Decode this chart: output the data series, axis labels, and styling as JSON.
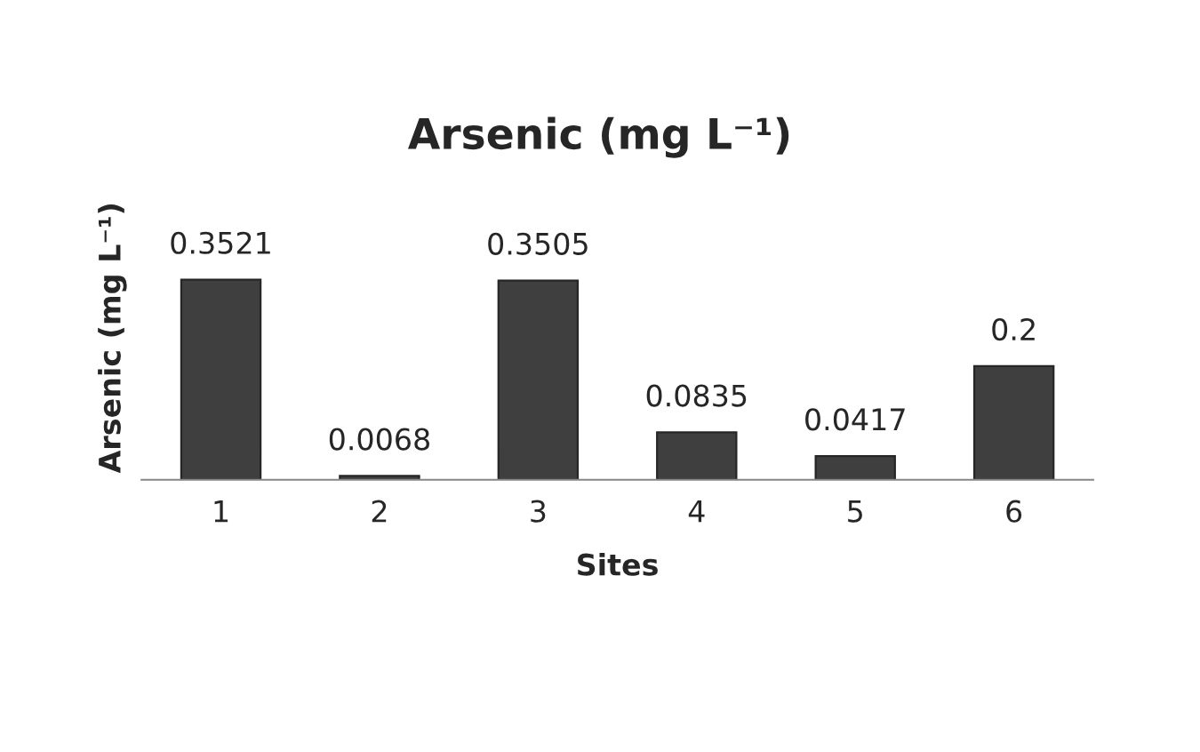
{
  "chart_data": {
    "type": "bar",
    "title": "Arsenic (mg L⁻¹)",
    "xlabel": "Sites",
    "ylabel": "Arsenic (mg L⁻¹)",
    "categories": [
      "1",
      "2",
      "3",
      "4",
      "5",
      "6"
    ],
    "values": [
      0.3521,
      0.0068,
      0.3505,
      0.0835,
      0.0417,
      0.2
    ],
    "color": "#3f3f3f",
    "data_labels": true,
    "grid": false,
    "legend": false
  }
}
